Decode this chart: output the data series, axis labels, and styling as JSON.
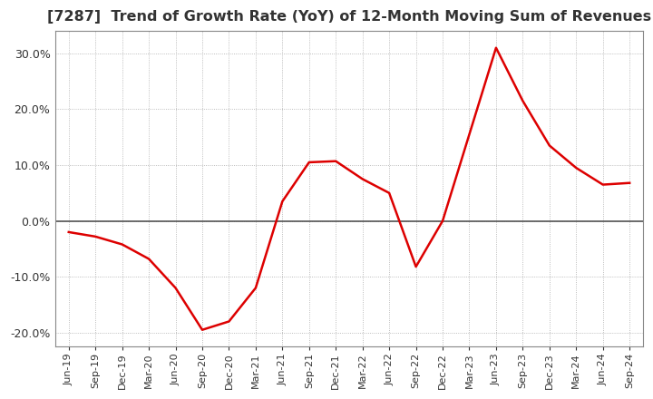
{
  "title": "[7287]  Trend of Growth Rate (YoY) of 12-Month Moving Sum of Revenues",
  "title_fontsize": 11.5,
  "line_color": "#dd0000",
  "zero_line_color": "#555555",
  "background_color": "#ffffff",
  "grid_color": "#aaaaaa",
  "ylim": [
    -0.225,
    0.34
  ],
  "yticks": [
    -0.2,
    -0.1,
    0.0,
    0.1,
    0.2,
    0.3
  ],
  "x_labels": [
    "Jun-19",
    "Sep-19",
    "Dec-19",
    "Mar-20",
    "Jun-20",
    "Sep-20",
    "Dec-20",
    "Mar-21",
    "Jun-21",
    "Sep-21",
    "Dec-21",
    "Mar-22",
    "Jun-22",
    "Sep-22",
    "Dec-22",
    "Mar-23",
    "Jun-23",
    "Sep-23",
    "Dec-23",
    "Mar-24",
    "Jun-24",
    "Sep-24"
  ],
  "y_values": [
    -0.02,
    -0.028,
    -0.042,
    -0.068,
    -0.12,
    -0.195,
    -0.18,
    -0.12,
    0.035,
    0.105,
    0.107,
    0.075,
    0.05,
    -0.082,
    0.0,
    0.155,
    0.31,
    0.215,
    0.135,
    0.095,
    0.065,
    0.068
  ]
}
